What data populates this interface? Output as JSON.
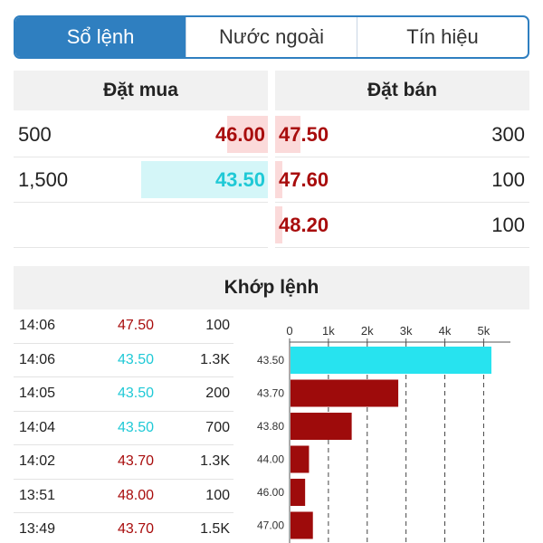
{
  "tabs": [
    {
      "label": "Sổ lệnh",
      "active": true
    },
    {
      "label": "Nước ngoài",
      "active": false
    },
    {
      "label": "Tín hiệu",
      "active": false
    }
  ],
  "order_book": {
    "buy_header": "Đặt mua",
    "sell_header": "Đặt bán",
    "buy": [
      {
        "volume": "500",
        "price": "46.00",
        "color": "red",
        "bar_fill": 0.16
      },
      {
        "volume": "1,500",
        "price": "43.50",
        "color": "cyan",
        "bar_fill": 0.5
      }
    ],
    "sell": [
      {
        "price": "47.50",
        "volume": "300",
        "color": "red",
        "bar_fill": 0.1
      },
      {
        "price": "47.60",
        "volume": "100",
        "color": "red",
        "bar_fill": 0.03
      },
      {
        "price": "48.20",
        "volume": "100",
        "color": "red",
        "bar_fill": 0.03
      }
    ]
  },
  "matched": {
    "header": "Khớp lệnh",
    "trades": [
      {
        "time": "14:06",
        "price": "47.50",
        "volume": "100",
        "color": "red"
      },
      {
        "time": "14:06",
        "price": "43.50",
        "volume": "1.3K",
        "color": "cyan"
      },
      {
        "time": "14:05",
        "price": "43.50",
        "volume": "200",
        "color": "cyan"
      },
      {
        "time": "14:04",
        "price": "43.50",
        "volume": "700",
        "color": "cyan"
      },
      {
        "time": "14:02",
        "price": "43.70",
        "volume": "1.3K",
        "color": "red"
      },
      {
        "time": "13:51",
        "price": "48.00",
        "volume": "100",
        "color": "red"
      },
      {
        "time": "13:49",
        "price": "43.70",
        "volume": "1.5K",
        "color": "red"
      }
    ]
  },
  "colors": {
    "red": "#a80c0c",
    "cyan": "#1fc9d6",
    "accent": "#2f7fc0",
    "bar_cyan": "#27e3ef",
    "bar_red": "#9e0b0b"
  },
  "chart_data": {
    "type": "bar",
    "orientation": "horizontal",
    "categories": [
      "43.50",
      "43.70",
      "43.80",
      "44.00",
      "46.00",
      "47.00"
    ],
    "values": [
      5200,
      2800,
      1600,
      500,
      400,
      600
    ],
    "bar_colors": [
      "cyan",
      "red",
      "red",
      "red",
      "red",
      "red"
    ],
    "x_ticks": [
      "0",
      "1k",
      "2k",
      "3k",
      "4k",
      "5k"
    ],
    "x_tick_values": [
      0,
      1000,
      2000,
      3000,
      4000,
      5000
    ],
    "xlim": [
      0,
      5200
    ],
    "grid": true,
    "axis_position": "top"
  }
}
